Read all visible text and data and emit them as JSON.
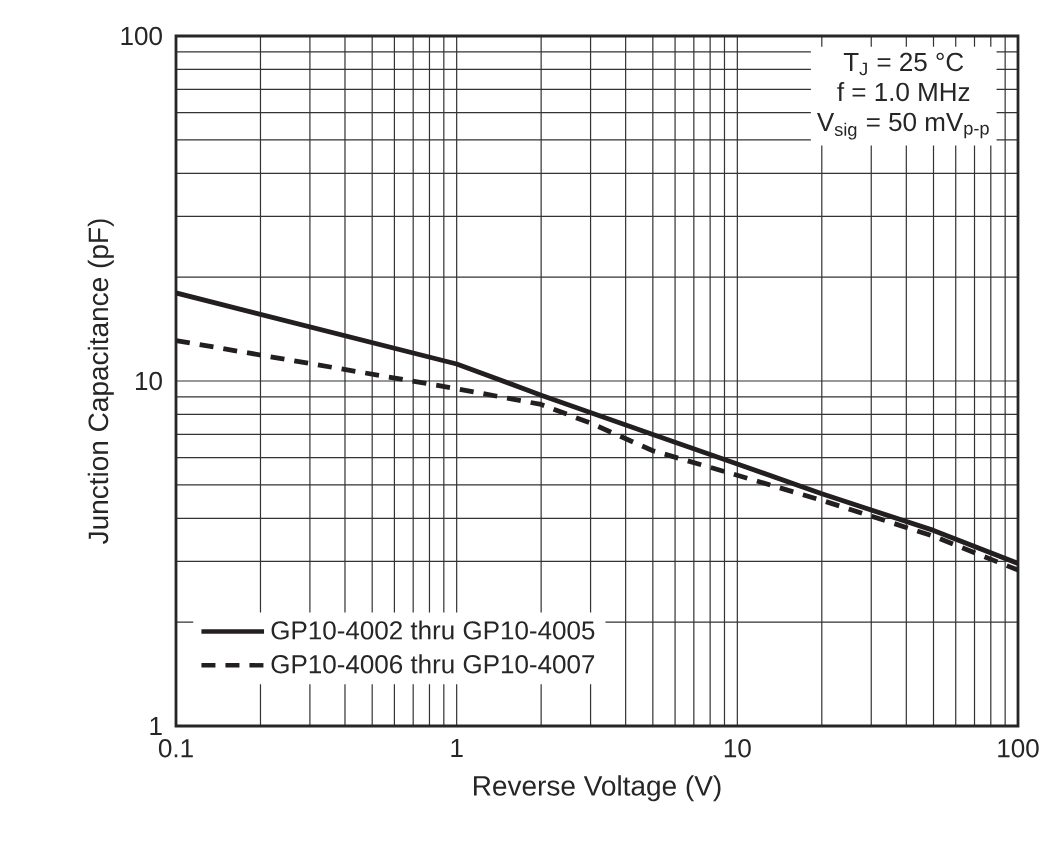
{
  "chart_data": {
    "type": "line",
    "xlabel": "Reverse Voltage (V)",
    "ylabel": "Junction Capacitance (pF)",
    "log": "xy",
    "grid": true,
    "legend": "bottom left",
    "xlim": [
      0.1,
      100
    ],
    "ylim": [
      1,
      100
    ],
    "xticks": [
      0.1,
      1,
      10,
      100
    ],
    "yticks": [
      1,
      10,
      100
    ],
    "annotations": [
      "T$_{J}$ = 25 °C",
      "f = 1.0 MHz",
      "V$_{sig}$ = 50 mV$_{p-p}$"
    ],
    "series": [
      {
        "name": "GP10-4002 thru GP10-4005",
        "color": "#231f20",
        "line_style": "solid",
        "x": [
          0.1,
          1,
          2,
          5,
          10,
          20,
          50,
          100
        ],
        "values": [
          18,
          11.2,
          9.1,
          7.0,
          5.75,
          4.71,
          3.69,
          2.96
        ]
      },
      {
        "name": "GP10-4006 thru GP10-4007",
        "color": "#231f20",
        "line_style": "dashed",
        "x": [
          0.1,
          1,
          2,
          3,
          5,
          10,
          20,
          50,
          100
        ],
        "values": [
          13.1,
          9.5,
          8.55,
          7.55,
          6.28,
          5.33,
          4.51,
          3.55,
          2.83
        ]
      }
    ]
  }
}
